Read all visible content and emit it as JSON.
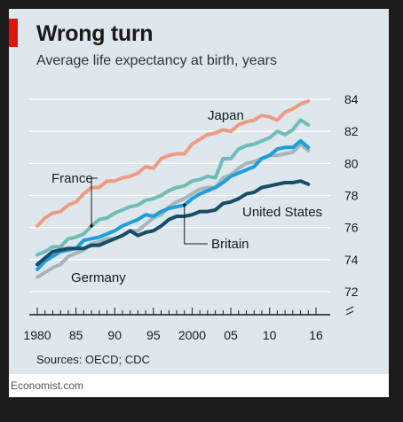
{
  "header": {
    "title": "Wrong turn",
    "subtitle": "Average life expectancy at birth, years"
  },
  "footer": {
    "source": "Sources: OECD; CDC",
    "brand": "Economist.com"
  },
  "colors": {
    "background": "#dde7ec",
    "accent": "#e3120b",
    "japan": "#ef9b82",
    "france": "#6fbcb8",
    "germany": "#a8b4b9",
    "britain": "#1b9fde",
    "united_states": "#164e66"
  },
  "chart_data": {
    "type": "line",
    "title": "Wrong turn",
    "subtitle": "Average life expectancy at birth, years",
    "xlabel": "",
    "ylabel": "",
    "xlim": [
      1980,
      2016
    ],
    "ylim": [
      72,
      84
    ],
    "y_axis_side": "right",
    "y_axis_break": true,
    "grid": "horizontal",
    "x_ticks": [
      {
        "value": 1980,
        "label": "1980"
      },
      {
        "value": 1985,
        "label": "85"
      },
      {
        "value": 1990,
        "label": "90"
      },
      {
        "value": 1995,
        "label": "95"
      },
      {
        "value": 2000,
        "label": "2000"
      },
      {
        "value": 2005,
        "label": "05"
      },
      {
        "value": 2010,
        "label": "10"
      },
      {
        "value": 2016,
        "label": "16"
      }
    ],
    "y_ticks": [
      {
        "value": 72,
        "label": "72"
      },
      {
        "value": 74,
        "label": "74"
      },
      {
        "value": 76,
        "label": "76"
      },
      {
        "value": 78,
        "label": "78"
      },
      {
        "value": 80,
        "label": "80"
      },
      {
        "value": 82,
        "label": "82"
      },
      {
        "value": 84,
        "label": "84"
      }
    ],
    "x": [
      1980,
      1981,
      1982,
      1983,
      1984,
      1985,
      1986,
      1987,
      1988,
      1989,
      1990,
      1991,
      1992,
      1993,
      1994,
      1995,
      1996,
      1997,
      1998,
      1999,
      2000,
      2001,
      2002,
      2003,
      2004,
      2005,
      2006,
      2007,
      2008,
      2009,
      2010,
      2011,
      2012,
      2013,
      2014,
      2015
    ],
    "series": [
      {
        "name": "Japan",
        "key": "japan",
        "values": [
          76.1,
          76.6,
          76.9,
          77.0,
          77.4,
          77.6,
          78.1,
          78.5,
          78.5,
          78.9,
          78.9,
          79.1,
          79.2,
          79.4,
          79.8,
          79.7,
          80.3,
          80.5,
          80.6,
          80.6,
          81.2,
          81.5,
          81.8,
          81.9,
          82.1,
          82.0,
          82.4,
          82.6,
          82.7,
          83.0,
          82.9,
          82.7,
          83.2,
          83.4,
          83.7,
          83.9
        ]
      },
      {
        "name": "France",
        "key": "france",
        "values": [
          74.3,
          74.5,
          74.8,
          74.8,
          75.3,
          75.4,
          75.6,
          76.1,
          76.5,
          76.6,
          76.9,
          77.1,
          77.3,
          77.4,
          77.7,
          77.8,
          78.0,
          78.3,
          78.5,
          78.6,
          78.9,
          79.0,
          79.2,
          79.1,
          80.3,
          80.3,
          80.9,
          81.1,
          81.2,
          81.4,
          81.6,
          82.0,
          81.8,
          82.1,
          82.7,
          82.4
        ]
      },
      {
        "name": "Germany",
        "key": "germany",
        "values": [
          72.9,
          73.2,
          73.5,
          73.7,
          74.2,
          74.4,
          74.6,
          75.0,
          75.1,
          75.3,
          75.3,
          75.5,
          75.8,
          75.8,
          76.2,
          76.6,
          76.8,
          77.3,
          77.6,
          77.8,
          78.1,
          78.4,
          78.5,
          78.5,
          79.1,
          79.3,
          79.7,
          80.0,
          80.1,
          80.3,
          80.5,
          80.5,
          80.6,
          80.7,
          81.2,
          80.8
        ]
      },
      {
        "name": "Britain",
        "key": "britain",
        "values": [
          73.4,
          73.9,
          74.2,
          74.5,
          74.6,
          74.7,
          75.2,
          75.3,
          75.4,
          75.6,
          75.8,
          76.1,
          76.3,
          76.5,
          76.8,
          76.7,
          77.0,
          77.2,
          77.3,
          77.4,
          77.8,
          78.1,
          78.3,
          78.5,
          78.8,
          79.2,
          79.4,
          79.6,
          79.8,
          80.3,
          80.5,
          80.9,
          81.0,
          81.0,
          81.4,
          81.0
        ]
      },
      {
        "name": "United States",
        "key": "united_states",
        "values": [
          73.7,
          74.1,
          74.5,
          74.6,
          74.7,
          74.7,
          74.7,
          74.9,
          74.9,
          75.1,
          75.3,
          75.5,
          75.8,
          75.5,
          75.7,
          75.8,
          76.1,
          76.5,
          76.7,
          76.7,
          76.8,
          77.0,
          77.0,
          77.1,
          77.5,
          77.6,
          77.8,
          78.1,
          78.2,
          78.5,
          78.6,
          78.7,
          78.8,
          78.8,
          78.9,
          78.7
        ]
      }
    ],
    "annotations": [
      {
        "text": "Japan",
        "series": "japan",
        "style": "direct"
      },
      {
        "text": "France",
        "series": "france",
        "style": "leader",
        "year": 1987
      },
      {
        "text": "United States",
        "series": "united_states",
        "style": "direct"
      },
      {
        "text": "Britain",
        "series": "britain",
        "style": "leader",
        "year": 1999
      },
      {
        "text": "Germany",
        "series": "germany",
        "style": "direct"
      }
    ]
  }
}
